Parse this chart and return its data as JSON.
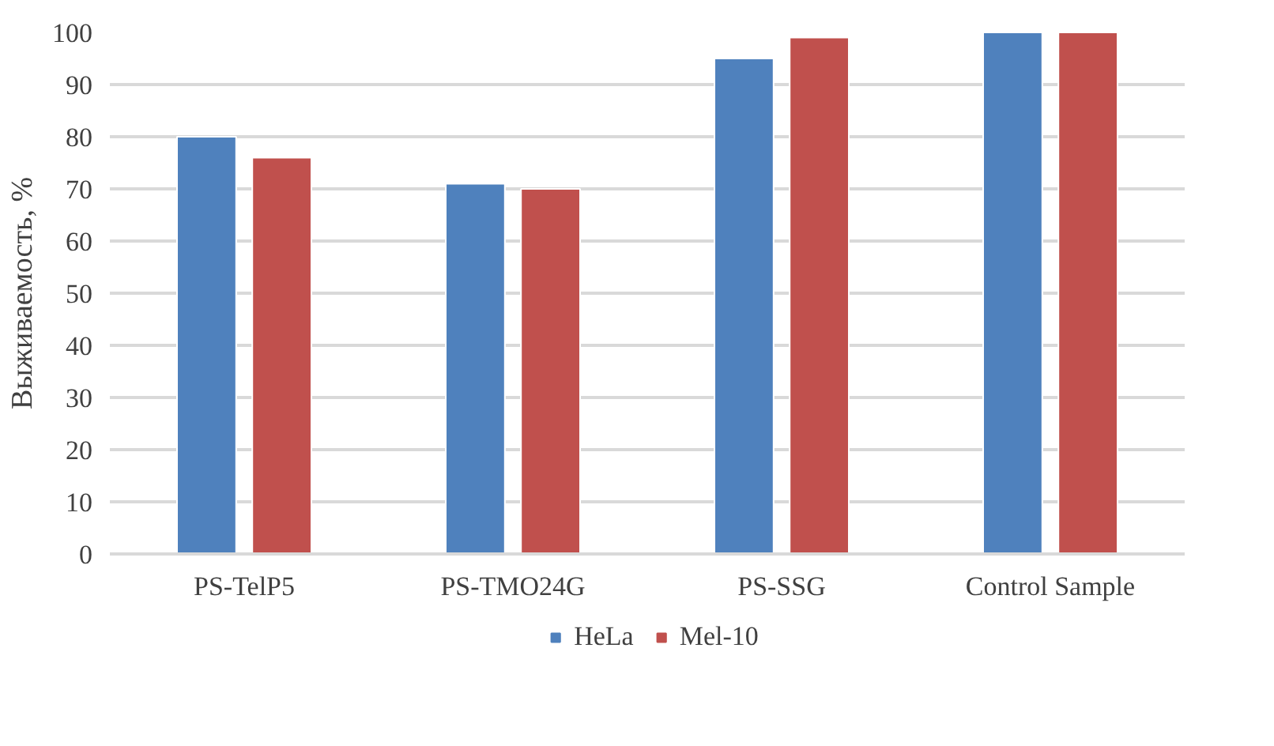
{
  "chart_data": {
    "type": "bar",
    "ylabel": "Выживаемость, %",
    "categories": [
      "PS-TelP5",
      "PS-TMO24G",
      "PS-SSG",
      "Control Sample"
    ],
    "series": [
      {
        "name": "HeLa",
        "color": "#4f81bd",
        "values": [
          80,
          71,
          95,
          100
        ]
      },
      {
        "name": "Mel-10",
        "color": "#c0504d",
        "values": [
          76,
          70,
          99,
          100
        ]
      }
    ],
    "ylim": [
      0,
      100
    ],
    "yticks": [
      0,
      10,
      20,
      30,
      40,
      50,
      60,
      70,
      80,
      90,
      100
    ],
    "grid": "y",
    "legend": "bottom"
  }
}
